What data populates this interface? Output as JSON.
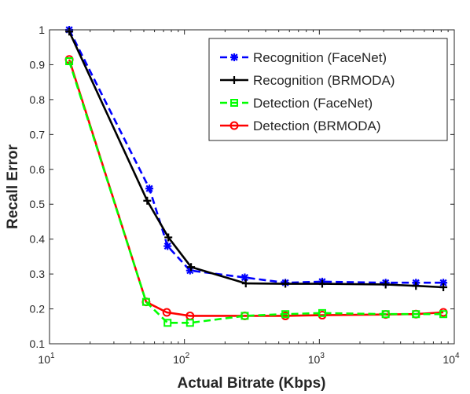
{
  "chart_data": {
    "type": "line",
    "xlabel": "Actual Bitrate (Kbps)",
    "ylabel": "Recall Error",
    "xscale": "log",
    "xlim": [
      10,
      10000
    ],
    "ylim": [
      0.1,
      1
    ],
    "x_ticks": [
      {
        "value": 10,
        "base": "10",
        "exp": "1"
      },
      {
        "value": 100,
        "base": "10",
        "exp": "2"
      },
      {
        "value": 1000,
        "base": "10",
        "exp": "3"
      },
      {
        "value": 10000,
        "base": "10",
        "exp": "4"
      }
    ],
    "y_ticks": [
      "0.1",
      "0.2",
      "0.3",
      "0.4",
      "0.5",
      "0.6",
      "0.7",
      "0.8",
      "0.9",
      "1"
    ],
    "grid": false,
    "legend_position": "top-right",
    "series": [
      {
        "name": "Recognition (FaceNet)",
        "color": "#0000ff",
        "dash": "dashed",
        "marker": "asterisk",
        "x": [
          14,
          55,
          75,
          110,
          280,
          560,
          1050,
          3100,
          5200,
          8300
        ],
        "y": [
          1.0,
          0.545,
          0.38,
          0.31,
          0.29,
          0.275,
          0.278,
          0.275,
          0.275,
          0.275
        ]
      },
      {
        "name": "Recognition (BRMODA)",
        "color": "#000000",
        "dash": "solid",
        "marker": "plus",
        "x": [
          14,
          53,
          76,
          112,
          285,
          560,
          1050,
          3100,
          5200,
          8300
        ],
        "y": [
          0.995,
          0.51,
          0.405,
          0.32,
          0.273,
          0.272,
          0.272,
          0.27,
          0.266,
          0.262
        ]
      },
      {
        "name": "Detection (FaceNet)",
        "color": "#00ff00",
        "dash": "dashed",
        "marker": "square",
        "x": [
          14,
          52,
          75,
          110,
          280,
          560,
          1050,
          3100,
          5200,
          8300
        ],
        "y": [
          0.91,
          0.22,
          0.16,
          0.16,
          0.18,
          0.185,
          0.188,
          0.185,
          0.185,
          0.185
        ]
      },
      {
        "name": "Detection (BRMODA)",
        "color": "#ff0000",
        "dash": "solid",
        "marker": "circle",
        "x": [
          14,
          52,
          74,
          110,
          280,
          560,
          1050,
          3100,
          5200,
          8300
        ],
        "y": [
          0.915,
          0.22,
          0.19,
          0.18,
          0.18,
          0.18,
          0.182,
          0.184,
          0.185,
          0.19
        ]
      }
    ]
  }
}
